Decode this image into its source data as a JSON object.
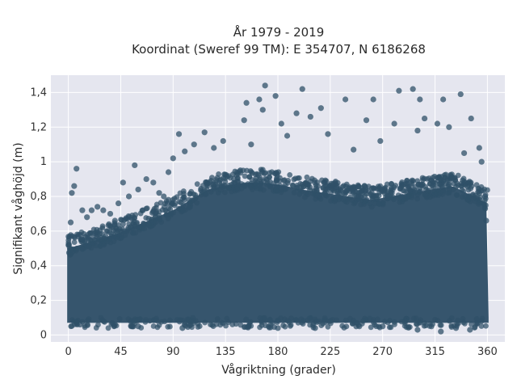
{
  "chart_data": {
    "type": "scatter",
    "title_line1": "År 1979 - 2019",
    "title_line2": "Koordinat (Sweref 99 TM): E 354707, N 6186268",
    "xlabel": "Vågriktning (grader)",
    "ylabel": "Signifikant våghöjd (m)",
    "xlim": [
      -15,
      375
    ],
    "ylim": [
      -0.04,
      1.5
    ],
    "xticks": [
      0,
      45,
      90,
      135,
      180,
      225,
      270,
      315,
      360
    ],
    "xtick_labels": [
      "0",
      "45",
      "90",
      "135",
      "180",
      "225",
      "270",
      "315",
      "360"
    ],
    "yticks": [
      0,
      0.2,
      0.4,
      0.6,
      0.8,
      1,
      1.2,
      1.4
    ],
    "ytick_labels": [
      "0",
      "0,2",
      "0,4",
      "0,6",
      "0,8",
      "1",
      "1,2",
      "1,4"
    ],
    "grid": true,
    "colors": {
      "marker": "#2f5068",
      "background": "#e5e6ef",
      "grid": "#ffffff"
    },
    "series": [
      {
        "values": [
          {
            "x": 169,
            "y": 1.44
          },
          {
            "x": 201,
            "y": 1.42
          },
          {
            "x": 296,
            "y": 1.42
          },
          {
            "x": 284,
            "y": 1.41
          },
          {
            "x": 337,
            "y": 1.39
          },
          {
            "x": 178,
            "y": 1.38
          },
          {
            "x": 164,
            "y": 1.36
          },
          {
            "x": 238,
            "y": 1.36
          },
          {
            "x": 262,
            "y": 1.36
          },
          {
            "x": 322,
            "y": 1.36
          },
          {
            "x": 153,
            "y": 1.34
          },
          {
            "x": 302,
            "y": 1.36
          },
          {
            "x": 217,
            "y": 1.31
          },
          {
            "x": 196,
            "y": 1.28
          },
          {
            "x": 208,
            "y": 1.26
          },
          {
            "x": 167,
            "y": 1.3
          },
          {
            "x": 346,
            "y": 1.25
          },
          {
            "x": 306,
            "y": 1.25
          },
          {
            "x": 183,
            "y": 1.22
          },
          {
            "x": 280,
            "y": 1.22
          },
          {
            "x": 151,
            "y": 1.24
          },
          {
            "x": 256,
            "y": 1.24
          },
          {
            "x": 317,
            "y": 1.22
          },
          {
            "x": 327,
            "y": 1.2
          },
          {
            "x": 117,
            "y": 1.17
          },
          {
            "x": 95,
            "y": 1.16
          },
          {
            "x": 133,
            "y": 1.12
          },
          {
            "x": 108,
            "y": 1.1
          },
          {
            "x": 223,
            "y": 1.16
          },
          {
            "x": 268,
            "y": 1.12
          },
          {
            "x": 300,
            "y": 1.18
          },
          {
            "x": 157,
            "y": 1.1
          },
          {
            "x": 100,
            "y": 1.06
          },
          {
            "x": 125,
            "y": 1.08
          },
          {
            "x": 245,
            "y": 1.07
          },
          {
            "x": 340,
            "y": 1.05
          },
          {
            "x": 353,
            "y": 1.08
          },
          {
            "x": 355,
            "y": 1.0
          },
          {
            "x": 90,
            "y": 1.02
          },
          {
            "x": 188,
            "y": 1.15
          },
          {
            "x": 12,
            "y": 0.72
          },
          {
            "x": 7,
            "y": 0.96
          },
          {
            "x": 5,
            "y": 0.86
          },
          {
            "x": 3,
            "y": 0.82
          },
          {
            "x": 20,
            "y": 0.72
          },
          {
            "x": 25,
            "y": 0.74
          },
          {
            "x": 30,
            "y": 0.72
          },
          {
            "x": 43,
            "y": 0.76
          },
          {
            "x": 47,
            "y": 0.88
          },
          {
            "x": 57,
            "y": 0.98
          },
          {
            "x": 67,
            "y": 0.9
          },
          {
            "x": 73,
            "y": 0.88
          },
          {
            "x": 82,
            "y": 0.8
          },
          {
            "x": 86,
            "y": 0.94
          },
          {
            "x": 78,
            "y": 0.82
          },
          {
            "x": 60,
            "y": 0.84
          },
          {
            "x": 36,
            "y": 0.7
          },
          {
            "x": 16,
            "y": 0.68
          },
          {
            "x": 2,
            "y": 0.65
          },
          {
            "x": 358,
            "y": 0.8
          },
          {
            "x": 359,
            "y": 0.66
          },
          {
            "x": 52,
            "y": 0.8
          },
          {
            "x": 40,
            "y": 0.66
          },
          {
            "x": 64,
            "y": 0.72
          },
          {
            "x": 10,
            "y": 0.06
          },
          {
            "x": 98,
            "y": 0.04
          },
          {
            "x": 155,
            "y": 0.05
          },
          {
            "x": 212,
            "y": 0.04
          },
          {
            "x": 270,
            "y": 0.05
          },
          {
            "x": 320,
            "y": 0.02
          },
          {
            "x": 345,
            "y": 0.03
          },
          {
            "x": 300,
            "y": 0.03
          },
          {
            "x": 333,
            "y": 0.04
          },
          {
            "x": 250,
            "y": 0.05
          },
          {
            "x": 180,
            "y": 0.04
          },
          {
            "x": 60,
            "y": 0.05
          }
        ]
      }
    ],
    "density_note_hidden": ""
  }
}
